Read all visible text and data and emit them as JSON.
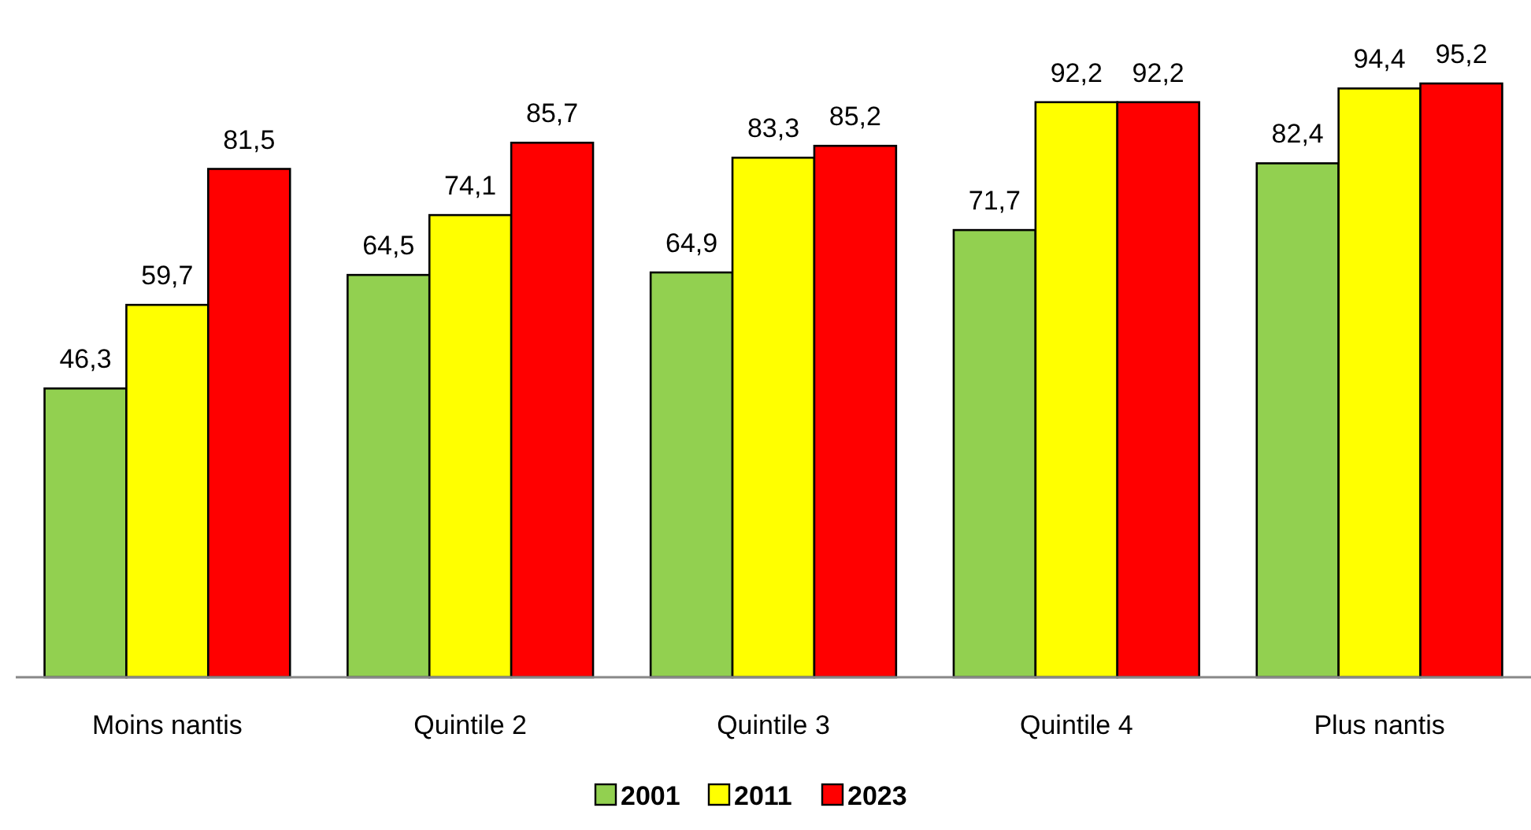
{
  "chart_data": {
    "type": "bar",
    "categories": [
      "Moins nantis",
      "Quintile 2",
      "Quintile 3",
      "Quintile 4",
      "Plus nantis"
    ],
    "series": [
      {
        "name": "2001",
        "color": "#92d050",
        "values": [
          46.3,
          64.5,
          64.9,
          71.7,
          82.4
        ],
        "value_labels": [
          "46,3",
          "64,5",
          "64,9",
          "71,7",
          "82,4"
        ]
      },
      {
        "name": "2011",
        "color": "#ffff00",
        "values": [
          59.7,
          74.1,
          83.3,
          92.2,
          94.4
        ],
        "value_labels": [
          "59,7",
          "74,1",
          "83,3",
          "92,2",
          "94,4"
        ]
      },
      {
        "name": "2023",
        "color": "#ff0000",
        "values": [
          81.5,
          85.7,
          85.2,
          92.2,
          95.2
        ],
        "value_labels": [
          "81,5",
          "85,7",
          "85,2",
          "92,2",
          "95,2"
        ]
      }
    ],
    "legend": "bottom",
    "tick_labels": "x"
  }
}
